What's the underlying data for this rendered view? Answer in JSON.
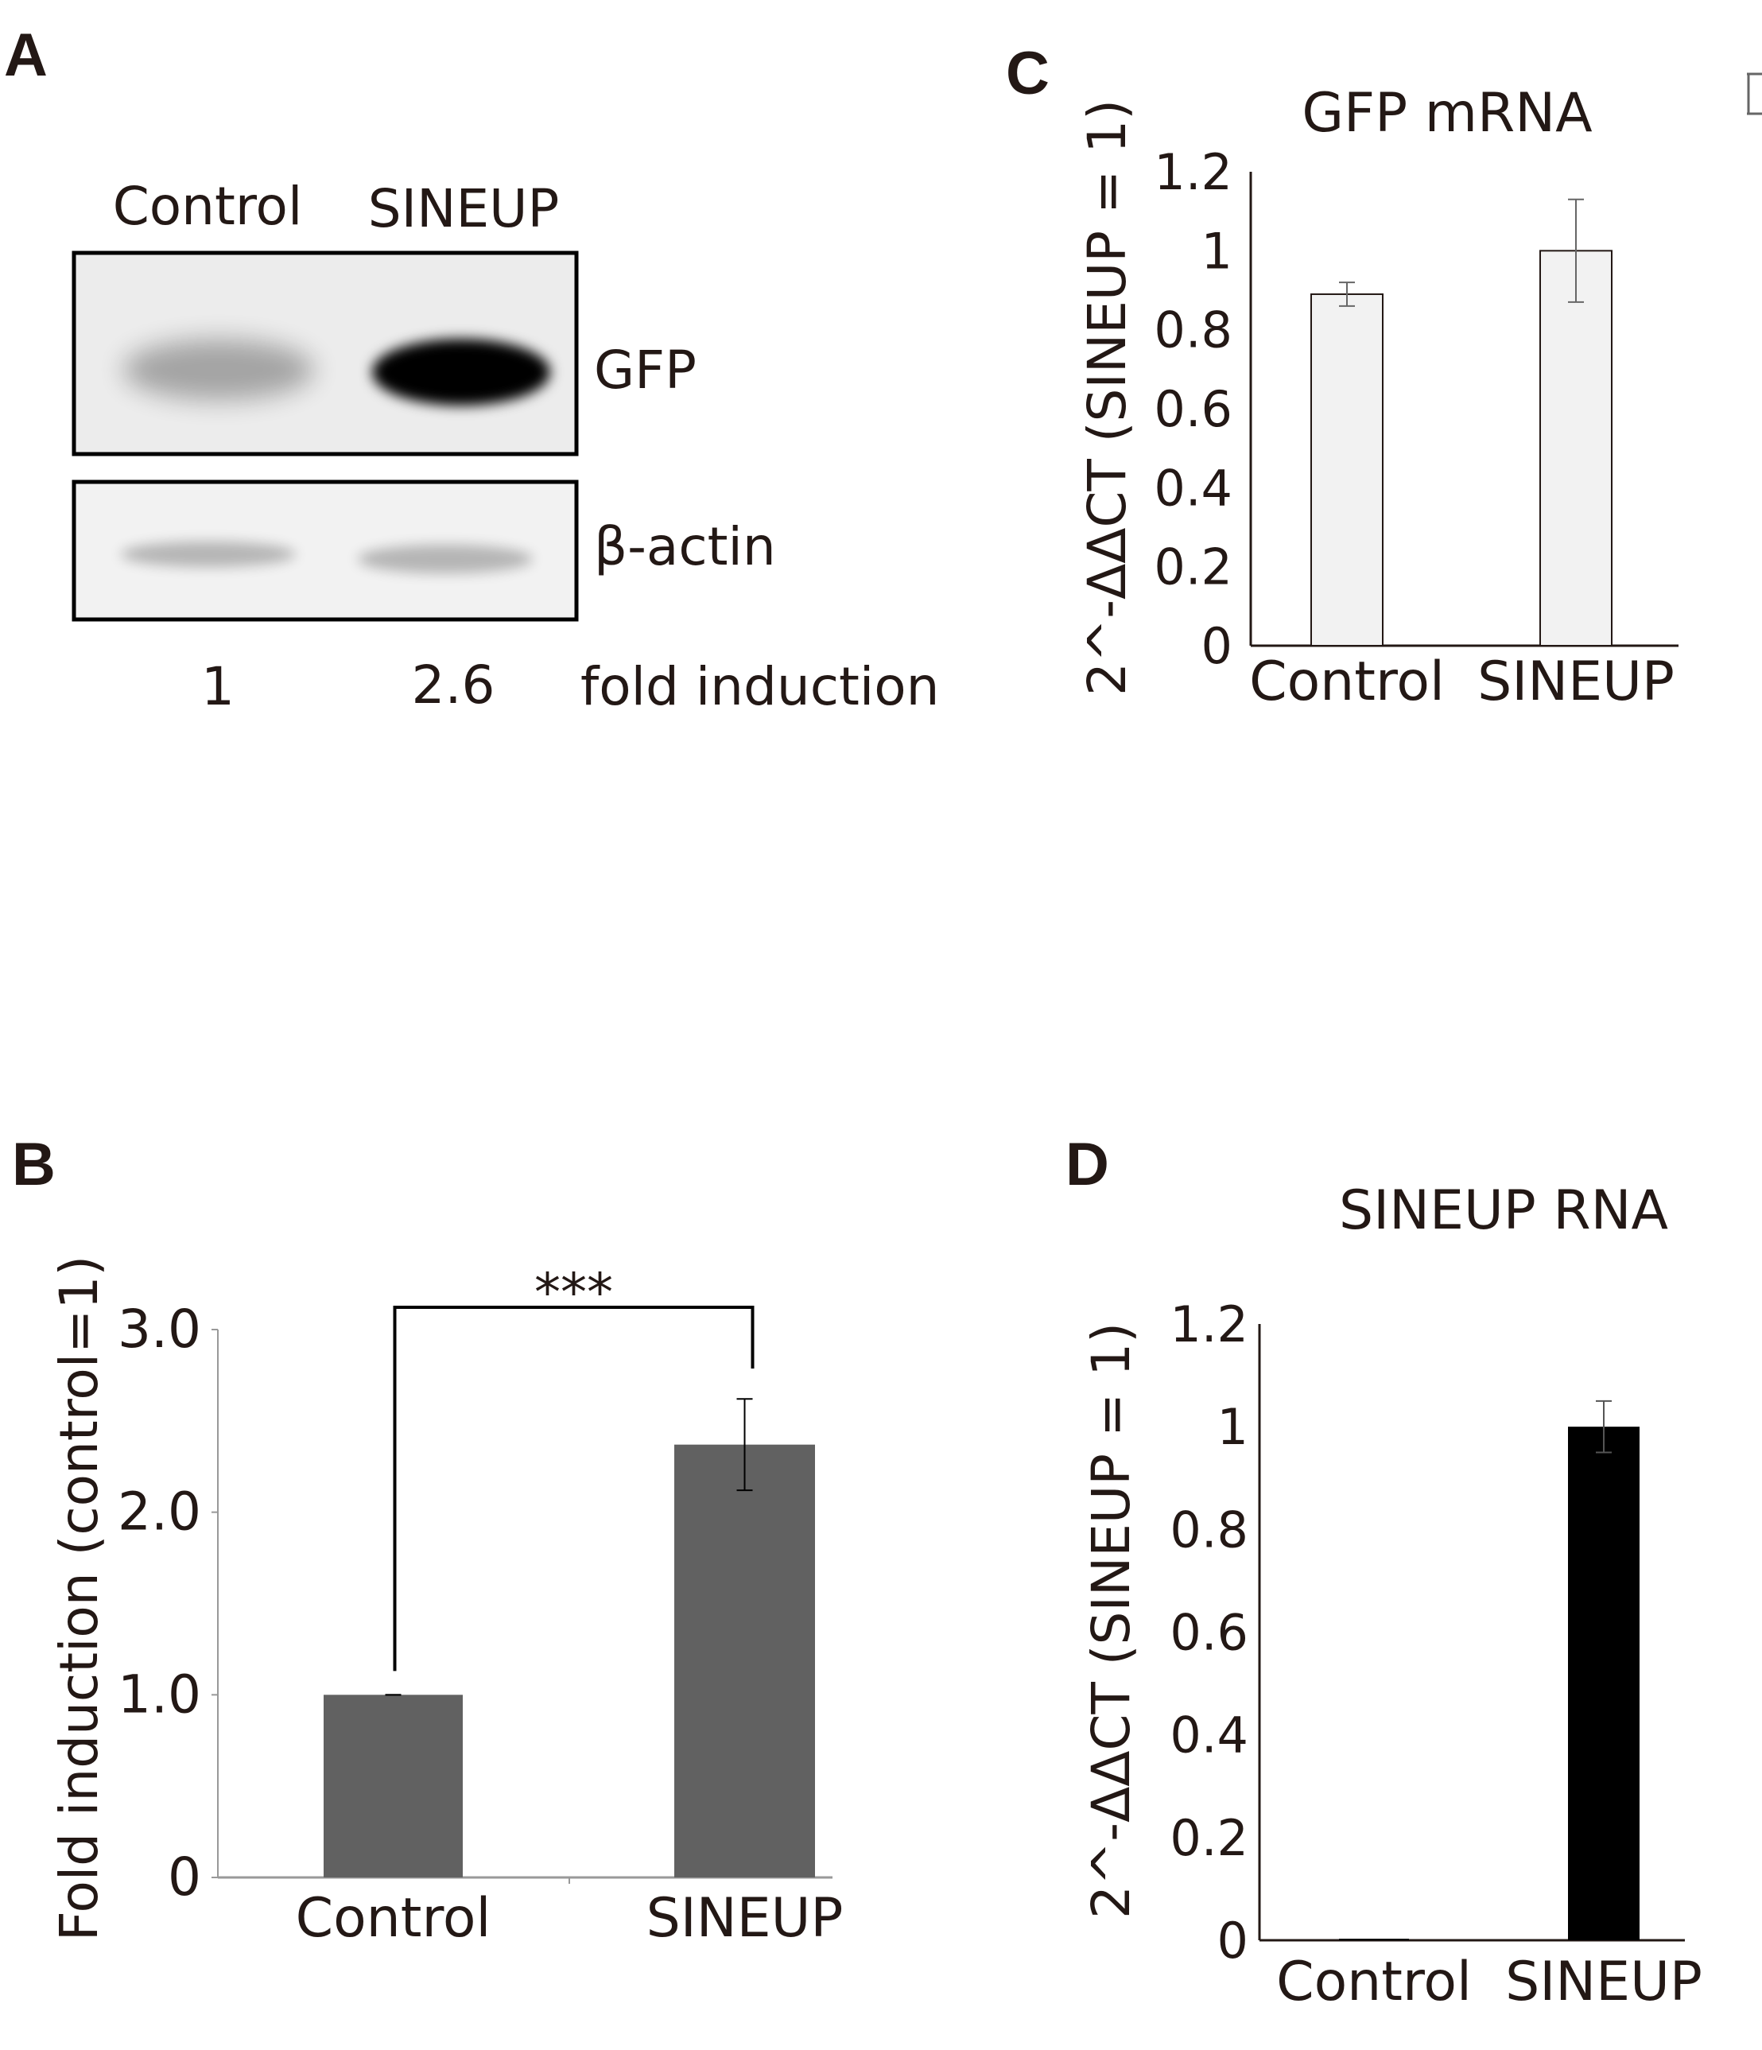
{
  "panels": {
    "a": {
      "letter": "A",
      "lane_labels": [
        "Control",
        "SINEUP"
      ],
      "band_labels": [
        "GFP",
        "β-actin"
      ],
      "fold_values": [
        "1",
        "2.6"
      ],
      "fold_label": "fold induction",
      "gfp_band_intensity": [
        0.3,
        1.0
      ],
      "actin_band_intensity": [
        0.25,
        0.25
      ]
    },
    "b": {
      "letter": "B"
    },
    "c": {
      "letter": "C"
    },
    "d": {
      "letter": "D"
    }
  },
  "chart_data": [
    {
      "id": "b",
      "type": "bar",
      "title": "",
      "categories": [
        "Control",
        "SINEUP"
      ],
      "values": [
        1.0,
        2.37
      ],
      "errors": [
        0.0,
        0.25
      ],
      "ylabel": "Fold induction (control=1)",
      "ylim": [
        0,
        3.0
      ],
      "yticks": [
        "0",
        "1.0",
        "2.0",
        "3.0"
      ],
      "ytick_values": [
        0,
        1,
        2,
        3
      ],
      "bar_color": "#616161",
      "significance": "***"
    },
    {
      "id": "c",
      "type": "bar",
      "title": "GFP mRNA",
      "categories": [
        "Control",
        "SINEUP"
      ],
      "values": [
        0.89,
        1.0
      ],
      "errors": [
        0.03,
        0.13
      ],
      "ylabel": "2^-ΔΔCT (SINEUP = 1)",
      "ylim": [
        0,
        1.2
      ],
      "yticks": [
        "0",
        "0.2",
        "0.4",
        "0.6",
        "0.8",
        "1",
        "1.2"
      ],
      "ytick_values": [
        0,
        0.2,
        0.4,
        0.6,
        0.8,
        1.0,
        1.2
      ],
      "bar_color": "#f2f2f2"
    },
    {
      "id": "d",
      "type": "bar",
      "title": "SINEUP RNA",
      "categories": [
        "Control",
        "SINEUP"
      ],
      "values": [
        0.003,
        1.0
      ],
      "errors": [
        0.0,
        0.05
      ],
      "ylabel": "2^-ΔΔCT (SINEUP = 1)",
      "ylim": [
        0,
        1.2
      ],
      "yticks": [
        "0",
        "0.2",
        "0.4",
        "0.6",
        "0.8",
        "1",
        "1.2"
      ],
      "ytick_values": [
        0,
        0.2,
        0.4,
        0.6,
        0.8,
        1.0,
        1.2
      ],
      "bar_color": "#000000"
    }
  ]
}
